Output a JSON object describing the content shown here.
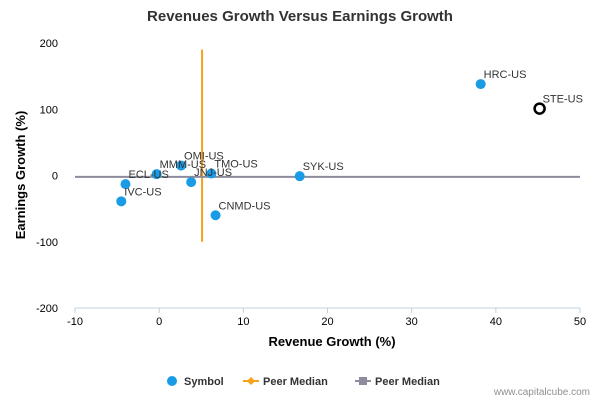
{
  "chart_data": {
    "type": "scatter",
    "title": "Revenues Growth Versus Earnings Growth",
    "xlabel": "Revenue Growth (%)",
    "ylabel": "Earnings Growth (%)",
    "xlim": [
      -10,
      50
    ],
    "ylim": [
      -200,
      200
    ],
    "xticks": [
      -10,
      0,
      10,
      20,
      30,
      40,
      50
    ],
    "yticks": [
      -200,
      -100,
      0,
      100,
      200
    ],
    "grid": false,
    "legend_position": "bottom-center",
    "series": [
      {
        "name": "Symbol",
        "color": "#1a9be6",
        "points": [
          {
            "label": "HRC-US",
            "x": 38.2,
            "y": 138
          },
          {
            "label": "SYK-US",
            "x": 16.7,
            "y": -1
          },
          {
            "label": "TMO-US",
            "x": 6.2,
            "y": 3
          },
          {
            "label": "OMI-US",
            "x": 2.6,
            "y": 15
          },
          {
            "label": "MMM-US",
            "x": -0.3,
            "y": 2
          },
          {
            "label": "JNJ-US",
            "x": 3.8,
            "y": -10
          },
          {
            "label": "ECL-US",
            "x": -4.0,
            "y": -13
          },
          {
            "label": "IVC-US",
            "x": -4.5,
            "y": -39
          },
          {
            "label": "CNMD-US",
            "x": 6.7,
            "y": -60
          }
        ]
      },
      {
        "name": "",
        "type": "highlight",
        "color": "#000000",
        "points": [
          {
            "label": "STE-US",
            "x": 45.2,
            "y": 101
          }
        ]
      }
    ],
    "median_lines": [
      {
        "name": "Peer Median",
        "orientation": "vertical",
        "value": 5.1,
        "extent": [
          -100,
          190
        ],
        "color": "#f7a21b"
      },
      {
        "name": "Peer Median",
        "orientation": "horizontal",
        "value": -2,
        "extent": [
          -10,
          50
        ],
        "color": "#8c8c9c"
      }
    ],
    "legend": [
      {
        "label": "Symbol",
        "marker": "circle",
        "color": "#1a9be6"
      },
      {
        "label": "Peer Median",
        "marker": "diamond-line",
        "color": "#f7a21b"
      },
      {
        "label": "Peer Median",
        "marker": "square-line",
        "color": "#8c8c9c"
      }
    ],
    "credit": "www.capitalcube.com"
  }
}
